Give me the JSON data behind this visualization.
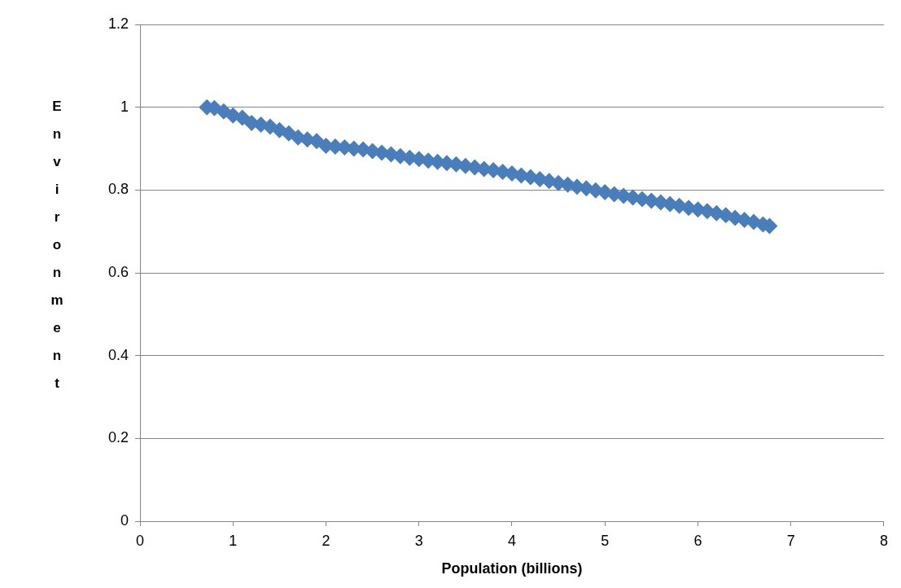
{
  "chart_data": {
    "type": "scatter",
    "xlabel": "Population (billions)",
    "ylabel": "Environment",
    "x": [
      0.72,
      0.8,
      0.9,
      1.0,
      1.1,
      1.2,
      1.3,
      1.4,
      1.5,
      1.6,
      1.7,
      1.8,
      1.9,
      2.0,
      2.1,
      2.2,
      2.3,
      2.4,
      2.5,
      2.6,
      2.7,
      2.8,
      2.9,
      3.0,
      3.1,
      3.2,
      3.3,
      3.4,
      3.5,
      3.6,
      3.7,
      3.8,
      3.9,
      4.0,
      4.1,
      4.2,
      4.3,
      4.4,
      4.5,
      4.6,
      4.7,
      4.8,
      4.9,
      5.0,
      5.1,
      5.2,
      5.3,
      5.4,
      5.5,
      5.6,
      5.7,
      5.8,
      5.9,
      6.0,
      6.1,
      6.2,
      6.3,
      6.4,
      6.5,
      6.6,
      6.7,
      6.77
    ],
    "series": [
      {
        "color": "#4a7ebb",
        "values": [
          1.0,
          0.998,
          0.99,
          0.98,
          0.975,
          0.962,
          0.958,
          0.953,
          0.945,
          0.937,
          0.927,
          0.922,
          0.918,
          0.907,
          0.905,
          0.903,
          0.9,
          0.898,
          0.894,
          0.89,
          0.886,
          0.882,
          0.878,
          0.875,
          0.871,
          0.868,
          0.865,
          0.862,
          0.858,
          0.855,
          0.851,
          0.848,
          0.844,
          0.84,
          0.835,
          0.831,
          0.826,
          0.822,
          0.817,
          0.813,
          0.808,
          0.804,
          0.799,
          0.795,
          0.79,
          0.786,
          0.782,
          0.778,
          0.774,
          0.77,
          0.766,
          0.762,
          0.757,
          0.753,
          0.749,
          0.744,
          0.739,
          0.733,
          0.728,
          0.723,
          0.717,
          0.713
        ]
      }
    ],
    "xlim": [
      0,
      8
    ],
    "xticks": [
      0,
      1,
      2,
      3,
      4,
      5,
      6,
      7,
      8
    ],
    "ylim": [
      0,
      1.2
    ],
    "yticks": [
      0,
      0.2,
      0.4,
      0.6,
      0.8,
      1,
      1.2
    ],
    "grid": "y",
    "legend": false,
    "marker": "diamond"
  }
}
